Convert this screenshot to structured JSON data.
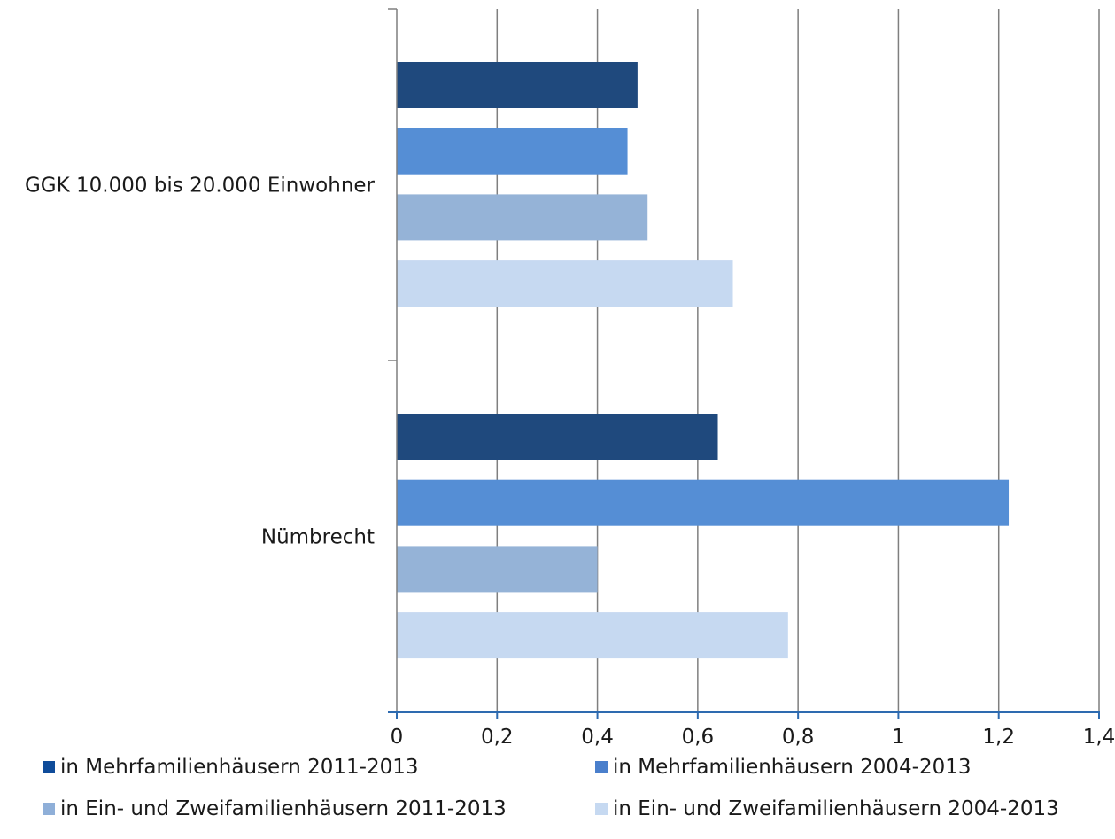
{
  "chart_data": {
    "type": "bar",
    "orientation": "horizontal",
    "categories": [
      "GGK 10.000 bis 20.000 Einwohner",
      "Nümbrecht"
    ],
    "series": [
      {
        "name": "in Mehrfamilienhäusern 2011-2013",
        "color": "#1F497D",
        "values": [
          0.48,
          0.64
        ]
      },
      {
        "name": "in Mehrfamilienhäusern 2004-2013",
        "color": "#558ED5",
        "values": [
          0.46,
          1.22
        ]
      },
      {
        "name": "in Ein- und Zweifamilienhäusern 2011-2013",
        "color": "#95B3D7",
        "values": [
          0.5,
          0.4
        ]
      },
      {
        "name": "in Ein- und Zweifamilienhäusern 2004-2013",
        "color": "#C6D9F1",
        "values": [
          0.67,
          0.78
        ]
      }
    ],
    "xlim": [
      0,
      1.4
    ],
    "xticks": [
      "0",
      "0,2",
      "0,4",
      "0,6",
      "0,8",
      "1",
      "1,2",
      "1,4"
    ],
    "grid": "vertical",
    "legend_position": "bottom",
    "legend_marker_colors": [
      "#0F4C9A",
      "#4A7FCC",
      "#8FAFD8",
      "#C6D9F1"
    ],
    "title": "",
    "xlabel": "",
    "ylabel": ""
  }
}
